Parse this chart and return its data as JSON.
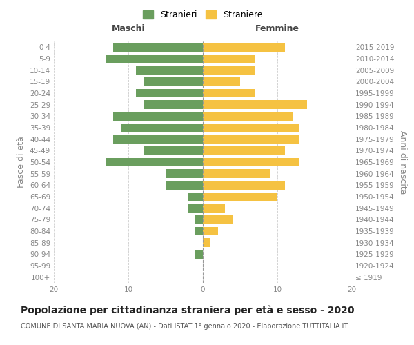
{
  "age_groups": [
    "100+",
    "95-99",
    "90-94",
    "85-89",
    "80-84",
    "75-79",
    "70-74",
    "65-69",
    "60-64",
    "55-59",
    "50-54",
    "45-49",
    "40-44",
    "35-39",
    "30-34",
    "25-29",
    "20-24",
    "15-19",
    "10-14",
    "5-9",
    "0-4"
  ],
  "birth_years": [
    "≤ 1919",
    "1920-1924",
    "1925-1929",
    "1930-1934",
    "1935-1939",
    "1940-1944",
    "1945-1949",
    "1950-1954",
    "1955-1959",
    "1960-1964",
    "1965-1969",
    "1970-1974",
    "1975-1979",
    "1980-1984",
    "1985-1989",
    "1990-1994",
    "1995-1999",
    "2000-2004",
    "2005-2009",
    "2010-2014",
    "2015-2019"
  ],
  "maschi": [
    0,
    0,
    1,
    0,
    1,
    1,
    2,
    2,
    5,
    5,
    13,
    8,
    12,
    11,
    12,
    8,
    9,
    8,
    9,
    13,
    12
  ],
  "femmine": [
    0,
    0,
    0,
    1,
    2,
    4,
    3,
    10,
    11,
    9,
    13,
    11,
    13,
    13,
    12,
    14,
    7,
    5,
    7,
    7,
    11
  ],
  "male_color": "#6a9e5e",
  "female_color": "#f5c242",
  "title": "Popolazione per cittadinanza straniera per età e sesso - 2020",
  "subtitle": "COMUNE DI SANTA MARIA NUOVA (AN) - Dati ISTAT 1° gennaio 2020 - Elaborazione TUTTITALIA.IT",
  "ylabel_left": "Fasce di età",
  "ylabel_right": "Anni di nascita",
  "xlabel_left": "Maschi",
  "xlabel_right": "Femmine",
  "legend_maschi": "Stranieri",
  "legend_femmine": "Straniere",
  "xlim": 20,
  "background_color": "#ffffff",
  "grid_color": "#cccccc",
  "title_fontsize": 10,
  "subtitle_fontsize": 7,
  "label_fontsize": 9,
  "tick_fontsize": 7.5
}
